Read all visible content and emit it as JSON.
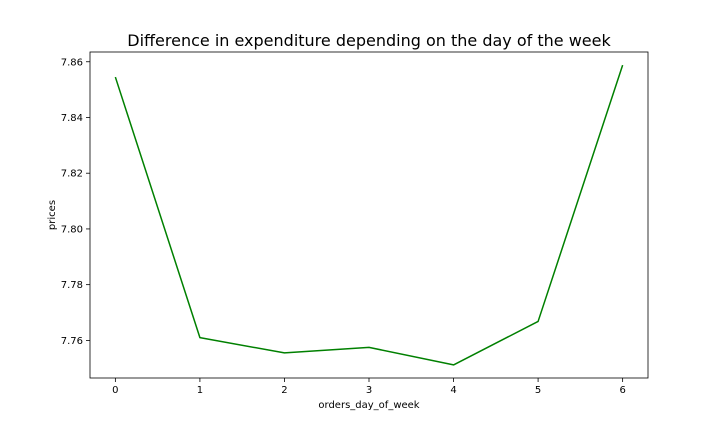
{
  "chart_data": {
    "type": "line",
    "title": "Difference in expenditure depending on the day of the week",
    "xlabel": "orders_day_of_week",
    "ylabel": "prices",
    "x": [
      0,
      1,
      2,
      3,
      4,
      5,
      6
    ],
    "series": [
      {
        "values": [
          7.8545,
          7.761,
          7.7555,
          7.7575,
          7.7512,
          7.7668,
          7.8588
        ],
        "color": "#008000"
      }
    ],
    "xlim": [
      -0.3,
      6.3
    ],
    "ylim": [
      7.7465,
      7.8635
    ],
    "xticks": [
      "0",
      "1",
      "2",
      "3",
      "4",
      "5",
      "6"
    ],
    "yticks": [
      "7.76",
      "7.78",
      "7.80",
      "7.82",
      "7.84",
      "7.86"
    ],
    "grid": false
  }
}
